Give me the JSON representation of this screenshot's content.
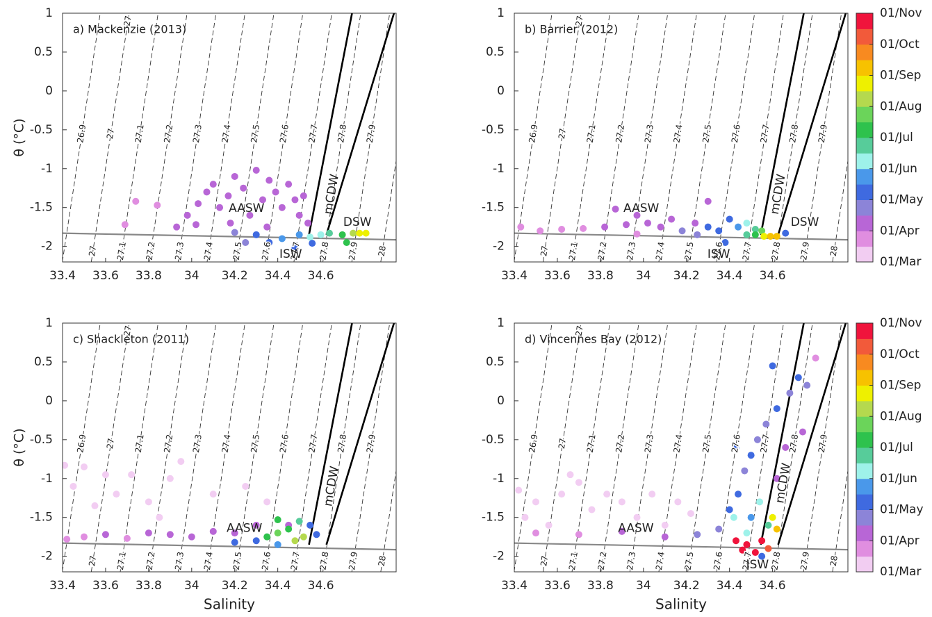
{
  "chart_data": [
    {
      "type": "scatter",
      "title": "a) Mackenzie (2013)",
      "ylabel": "θ (°C)",
      "xlim": [
        33.4,
        34.95
      ],
      "ylim": [
        -2.2,
        1
      ],
      "xticks": [
        33.4,
        33.6,
        33.8,
        34,
        34.2,
        34.4,
        34.6
      ],
      "yticks": [
        -2,
        -1.5,
        -1,
        -0.5,
        0,
        0.5,
        1
      ],
      "isopycnals": [
        26.9,
        27,
        27.1,
        27.2,
        27.3,
        27.4,
        27.5,
        27.6,
        27.7,
        27.8,
        27.9,
        28
      ],
      "annotations": [
        "AASW",
        "ISW",
        "DSW",
        "mCDW"
      ],
      "x": [
        33.93,
        33.98,
        34.03,
        34.07,
        34.1,
        34.13,
        34.17,
        34.2,
        34.24,
        34.27,
        34.3,
        34.33,
        34.36,
        34.39,
        34.42,
        34.45,
        34.48,
        34.5,
        34.52,
        34.54,
        34.02,
        34.18,
        34.35,
        33.69,
        33.74,
        33.84,
        34.2,
        34.3,
        34.36,
        34.42,
        34.48,
        34.5,
        34.55,
        34.6,
        34.64,
        34.7,
        34.72,
        34.75,
        34.78,
        34.81,
        34.56,
        34.25
      ],
      "y": [
        -1.75,
        -1.6,
        -1.45,
        -1.3,
        -1.2,
        -1.5,
        -1.35,
        -1.1,
        -1.25,
        -1.6,
        -1.02,
        -1.4,
        -1.15,
        -1.3,
        -1.5,
        -1.2,
        -1.4,
        -1.6,
        -1.35,
        -1.7,
        -1.72,
        -1.7,
        -1.75,
        -1.72,
        -1.42,
        -1.47,
        -1.82,
        -1.85,
        -1.95,
        -1.9,
        -2.02,
        -1.85,
        -1.88,
        -1.85,
        -1.83,
        -1.85,
        -1.95,
        -1.83,
        -1.83,
        -1.83,
        -1.96,
        -1.95
      ],
      "colors": [
        "#b866d6",
        "#b866d6",
        "#b866d6",
        "#b866d6",
        "#b866d6",
        "#b866d6",
        "#b866d6",
        "#b866d6",
        "#b866d6",
        "#b866d6",
        "#b866d6",
        "#b866d6",
        "#b866d6",
        "#b866d6",
        "#b866d6",
        "#b866d6",
        "#b866d6",
        "#b866d6",
        "#b866d6",
        "#b866d6",
        "#b866d6",
        "#b866d6",
        "#b866d6",
        "#e08ee0",
        "#e08ee0",
        "#e08ee0",
        "#8c84d8",
        "#3f6ae0",
        "#3f6ae0",
        "#4a98ea",
        "#3f6ae0",
        "#4a98ea",
        "#9ef2ea",
        "#9ef2ea",
        "#57cc9a",
        "#2ec24d",
        "#2ec24d",
        "#b5d94e",
        "#eef000",
        "#eef000",
        "#3f6ae0",
        "#8c84d8"
      ]
    },
    {
      "type": "scatter",
      "title": "b) Barrier (2012)",
      "xlim": [
        33.4,
        34.95
      ],
      "ylim": [
        -2.2,
        1
      ],
      "xticks": [
        33.4,
        33.6,
        33.8,
        34,
        34.2,
        34.4,
        34.6
      ],
      "yticks": [
        -2,
        -1.5,
        -1,
        -0.5,
        0,
        0.5,
        1
      ],
      "isopycnals": [
        26.9,
        27,
        27.1,
        27.2,
        27.3,
        27.4,
        27.5,
        27.6,
        27.7,
        27.8,
        27.9,
        28
      ],
      "annotations": [
        "AASW",
        "ISW",
        "DSW",
        "mCDW"
      ],
      "x": [
        33.43,
        33.52,
        33.62,
        33.72,
        33.82,
        33.87,
        33.92,
        33.97,
        34.02,
        34.08,
        34.13,
        34.18,
        34.24,
        34.3,
        34.35,
        34.4,
        34.44,
        34.48,
        34.48,
        34.52,
        34.52,
        34.55,
        34.56,
        34.59,
        34.62,
        34.38,
        34.25,
        34.3,
        33.97,
        34.66
      ],
      "y": [
        -1.75,
        -1.8,
        -1.78,
        -1.77,
        -1.75,
        -1.52,
        -1.72,
        -1.6,
        -1.7,
        -1.75,
        -1.65,
        -1.8,
        -1.7,
        -1.75,
        -1.8,
        -1.65,
        -1.75,
        -1.7,
        -1.85,
        -1.78,
        -1.85,
        -1.8,
        -1.87,
        -1.87,
        -1.87,
        -1.95,
        -1.85,
        -1.42,
        -1.84,
        -1.83
      ],
      "colors": [
        "#e08ee0",
        "#e08ee0",
        "#e08ee0",
        "#e08ee0",
        "#b866d6",
        "#b866d6",
        "#b866d6",
        "#b866d6",
        "#b866d6",
        "#b866d6",
        "#b866d6",
        "#8c84d8",
        "#b866d6",
        "#3f6ae0",
        "#3f6ae0",
        "#3f6ae0",
        "#4a98ea",
        "#9ef2ea",
        "#57cc9a",
        "#57cc9a",
        "#2ec24d",
        "#6bd45a",
        "#eef000",
        "#f7c200",
        "#f7c200",
        "#3f6ae0",
        "#8c84d8",
        "#b866d6",
        "#e08ee0",
        "#3f6ae0"
      ],
      "colorbar": {
        "labels": [
          "01/Mar",
          "01/Apr",
          "01/May",
          "01/Jun",
          "01/Jul",
          "01/Aug",
          "01/Sep",
          "01/Oct",
          "01/Nov"
        ],
        "colors": [
          "#f2cdf2",
          "#e08ee0",
          "#b866d6",
          "#8c84d8",
          "#3f6ae0",
          "#4a98ea",
          "#9ef2ea",
          "#57cc9a",
          "#2ec24d",
          "#6bd45a",
          "#b5d94e",
          "#eef000",
          "#f7c200",
          "#f88a20",
          "#f25a3a",
          "#f0143c"
        ]
      }
    },
    {
      "type": "scatter",
      "title": "c) Shackleton (2011)",
      "ylabel": "θ (°C)",
      "xlabel": "Salinity",
      "xlim": [
        33.4,
        34.95
      ],
      "ylim": [
        -2.2,
        1
      ],
      "xticks": [
        33.4,
        33.6,
        33.8,
        34,
        34.2,
        34.4,
        34.6
      ],
      "yticks": [
        -2,
        -1.5,
        -1,
        -0.5,
        0,
        0.5,
        1
      ],
      "isopycnals": [
        26.9,
        27,
        27.1,
        27.2,
        27.3,
        27.4,
        27.5,
        27.6,
        27.7,
        27.8,
        27.9,
        28
      ],
      "annotations": [
        "AASW",
        "mCDW"
      ],
      "x": [
        33.41,
        33.45,
        33.5,
        33.55,
        33.6,
        33.65,
        33.72,
        33.8,
        33.9,
        33.95,
        34.1,
        34.25,
        34.35,
        33.85,
        33.42,
        33.5,
        33.6,
        33.7,
        33.8,
        33.9,
        34.0,
        34.1,
        34.2,
        34.3,
        34.45,
        34.2,
        34.3,
        34.4,
        34.55,
        34.58,
        34.35,
        34.4,
        34.45,
        34.48,
        34.5,
        34.4,
        34.52
      ],
      "y": [
        -0.83,
        -1.1,
        -0.85,
        -1.35,
        -0.95,
        -1.2,
        -0.95,
        -1.3,
        -1.0,
        -0.78,
        -1.2,
        -1.1,
        -1.3,
        -1.5,
        -1.78,
        -1.75,
        -1.72,
        -1.77,
        -1.7,
        -1.72,
        -1.75,
        -1.68,
        -1.7,
        -1.6,
        -1.6,
        -1.82,
        -1.8,
        -1.85,
        -1.6,
        -1.72,
        -1.75,
        -1.7,
        -1.65,
        -1.8,
        -1.55,
        -1.53,
        -1.75
      ],
      "colors": [
        "#f2cdf2",
        "#f2cdf2",
        "#f2cdf2",
        "#f2cdf2",
        "#f2cdf2",
        "#f2cdf2",
        "#f2cdf2",
        "#f2cdf2",
        "#f2cdf2",
        "#f2cdf2",
        "#f2cdf2",
        "#f2cdf2",
        "#f2cdf2",
        "#f2cdf2",
        "#e08ee0",
        "#e08ee0",
        "#b866d6",
        "#e08ee0",
        "#b866d6",
        "#b866d6",
        "#b866d6",
        "#b866d6",
        "#b866d6",
        "#b866d6",
        "#b866d6",
        "#3f6ae0",
        "#3f6ae0",
        "#4a98ea",
        "#3f6ae0",
        "#3f6ae0",
        "#2ec24d",
        "#6bd45a",
        "#2ec24d",
        "#b5d94e",
        "#57cc9a",
        "#2ec24d",
        "#b5d94e"
      ]
    },
    {
      "type": "scatter",
      "title": "d) Vincennes Bay (2012)",
      "xlabel": "Salinity",
      "xlim": [
        33.4,
        34.95
      ],
      "ylim": [
        -2.2,
        1
      ],
      "xticks": [
        33.4,
        33.6,
        33.8,
        34,
        34.2,
        34.4,
        34.6
      ],
      "yticks": [
        -2,
        -1.5,
        -1,
        -0.5,
        0,
        0.5,
        1
      ],
      "isopycnals": [
        26.9,
        27,
        27.1,
        27.2,
        27.3,
        27.4,
        27.5,
        27.6,
        27.7,
        27.8,
        27.9,
        28
      ],
      "annotations": [
        "AASW",
        "ISW",
        "mCDW"
      ],
      "x": [
        33.42,
        33.5,
        33.56,
        33.62,
        33.7,
        33.76,
        33.83,
        33.9,
        33.97,
        34.04,
        34.1,
        34.16,
        34.22,
        33.45,
        33.66,
        33.5,
        33.7,
        33.9,
        34.1,
        34.25,
        34.35,
        34.4,
        34.44,
        34.47,
        34.5,
        34.53,
        34.57,
        34.62,
        34.66,
        34.68,
        34.72,
        34.76,
        34.74,
        34.62,
        34.6,
        34.8,
        34.43,
        34.5,
        34.42,
        34.48,
        34.54,
        34.58,
        34.6,
        34.62,
        34.43,
        34.48,
        34.52,
        34.55,
        34.58,
        34.46,
        34.55
      ],
      "y": [
        -1.15,
        -1.3,
        -1.6,
        -1.2,
        -1.05,
        -1.4,
        -1.2,
        -1.3,
        -1.5,
        -1.2,
        -1.6,
        -1.3,
        -1.45,
        -1.5,
        -0.95,
        -1.7,
        -1.72,
        -1.68,
        -1.75,
        -1.72,
        -1.65,
        -1.4,
        -1.2,
        -0.9,
        -0.7,
        -0.5,
        -0.3,
        -0.1,
        -0.6,
        0.1,
        0.3,
        0.2,
        -0.4,
        -1.0,
        0.45,
        0.55,
        -0.6,
        -1.5,
        -1.5,
        -1.7,
        -1.3,
        -1.6,
        -1.5,
        -1.65,
        -1.8,
        -1.85,
        -1.95,
        -1.8,
        -1.9,
        -1.92,
        -2.0
      ],
      "colors": [
        "#f2cdf2",
        "#f2cdf2",
        "#f2cdf2",
        "#f2cdf2",
        "#f2cdf2",
        "#f2cdf2",
        "#f2cdf2",
        "#f2cdf2",
        "#f2cdf2",
        "#f2cdf2",
        "#f2cdf2",
        "#f2cdf2",
        "#f2cdf2",
        "#f2cdf2",
        "#f2cdf2",
        "#e08ee0",
        "#e08ee0",
        "#b866d6",
        "#b866d6",
        "#8c84d8",
        "#8c84d8",
        "#3f6ae0",
        "#3f6ae0",
        "#8c84d8",
        "#3f6ae0",
        "#8c84d8",
        "#8c84d8",
        "#3f6ae0",
        "#b866d6",
        "#8c84d8",
        "#3f6ae0",
        "#8c84d8",
        "#b866d6",
        "#b866d6",
        "#3f6ae0",
        "#e08ee0",
        "#3f6ae0",
        "#4a98ea",
        "#9ef2ea",
        "#9ef2ea",
        "#9ef2ea",
        "#57cc9a",
        "#eef000",
        "#f7c200",
        "#f0143c",
        "#f0143c",
        "#f0143c",
        "#f0143c",
        "#f25a3a",
        "#f0143c",
        "#3f6ae0"
      ],
      "colorbar": {
        "labels": [
          "01/Mar",
          "01/Apr",
          "01/May",
          "01/Jun",
          "01/Jul",
          "01/Aug",
          "01/Sep",
          "01/Oct",
          "01/Nov"
        ],
        "colors": [
          "#f2cdf2",
          "#e08ee0",
          "#b866d6",
          "#8c84d8",
          "#3f6ae0",
          "#4a98ea",
          "#9ef2ea",
          "#57cc9a",
          "#2ec24d",
          "#6bd45a",
          "#b5d94e",
          "#eef000",
          "#f7c200",
          "#f88a20",
          "#f25a3a",
          "#f0143c"
        ]
      }
    }
  ]
}
